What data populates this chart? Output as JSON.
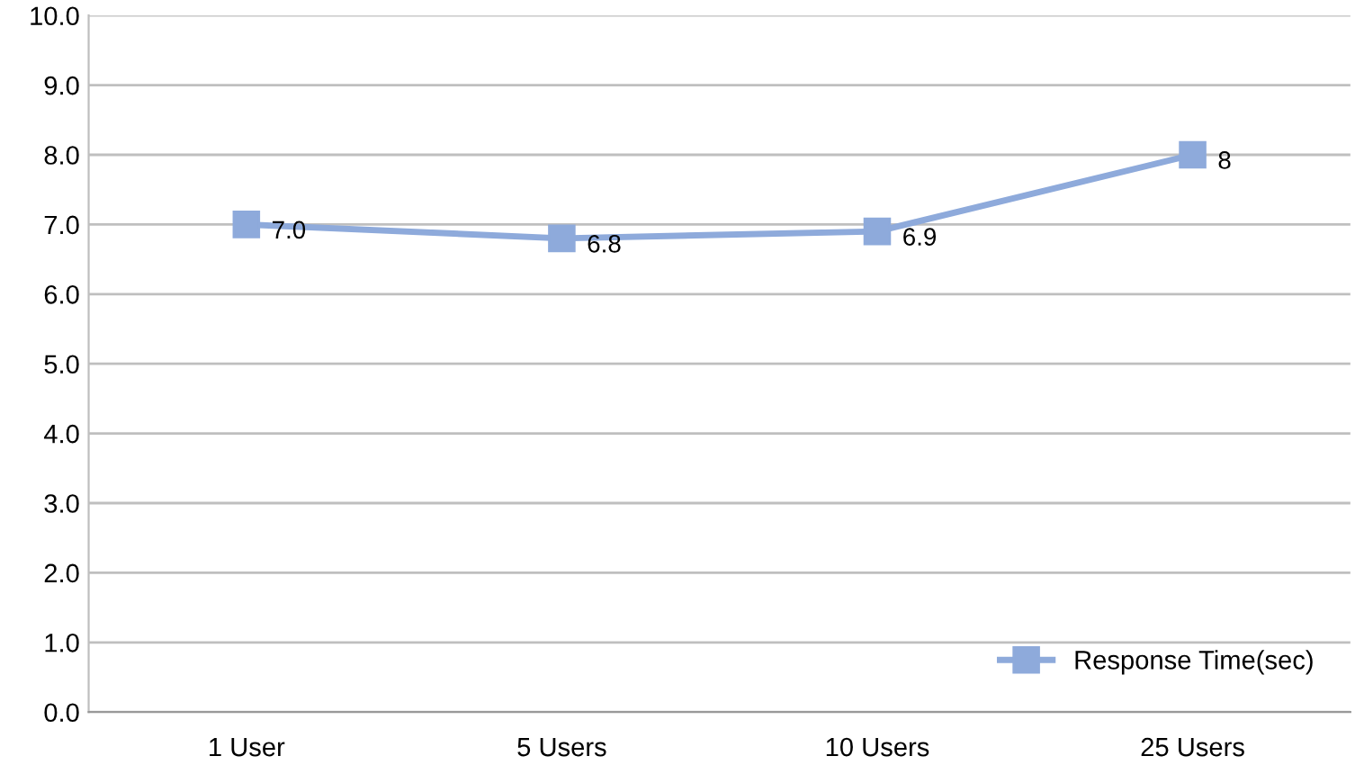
{
  "chart_data": {
    "type": "line",
    "categories": [
      "1 User",
      "5 Users",
      "10 Users",
      "25 Users"
    ],
    "series": [
      {
        "name": "Response Time(sec)",
        "color": "#8eaadb",
        "values": [
          7.0,
          6.8,
          6.9,
          8.0
        ],
        "value_labels": [
          "7.0",
          "6.8",
          "6.9",
          "8"
        ]
      }
    ],
    "ylim": [
      0,
      10
    ],
    "yticks": [
      {
        "value": 0,
        "label": "0.0"
      },
      {
        "value": 1,
        "label": "1.0"
      },
      {
        "value": 2,
        "label": "2.0"
      },
      {
        "value": 3,
        "label": "3.0"
      },
      {
        "value": 4,
        "label": "4.0"
      },
      {
        "value": 5,
        "label": "5.0"
      },
      {
        "value": 6,
        "label": "6.0"
      },
      {
        "value": 7,
        "label": "7.0"
      },
      {
        "value": 8,
        "label": "8.0"
      },
      {
        "value": 9,
        "label": "9.0"
      },
      {
        "value": 10,
        "label": "10.0"
      }
    ],
    "grid": "y",
    "legend": "bottom right",
    "marker": "square",
    "line_style": "solid"
  }
}
